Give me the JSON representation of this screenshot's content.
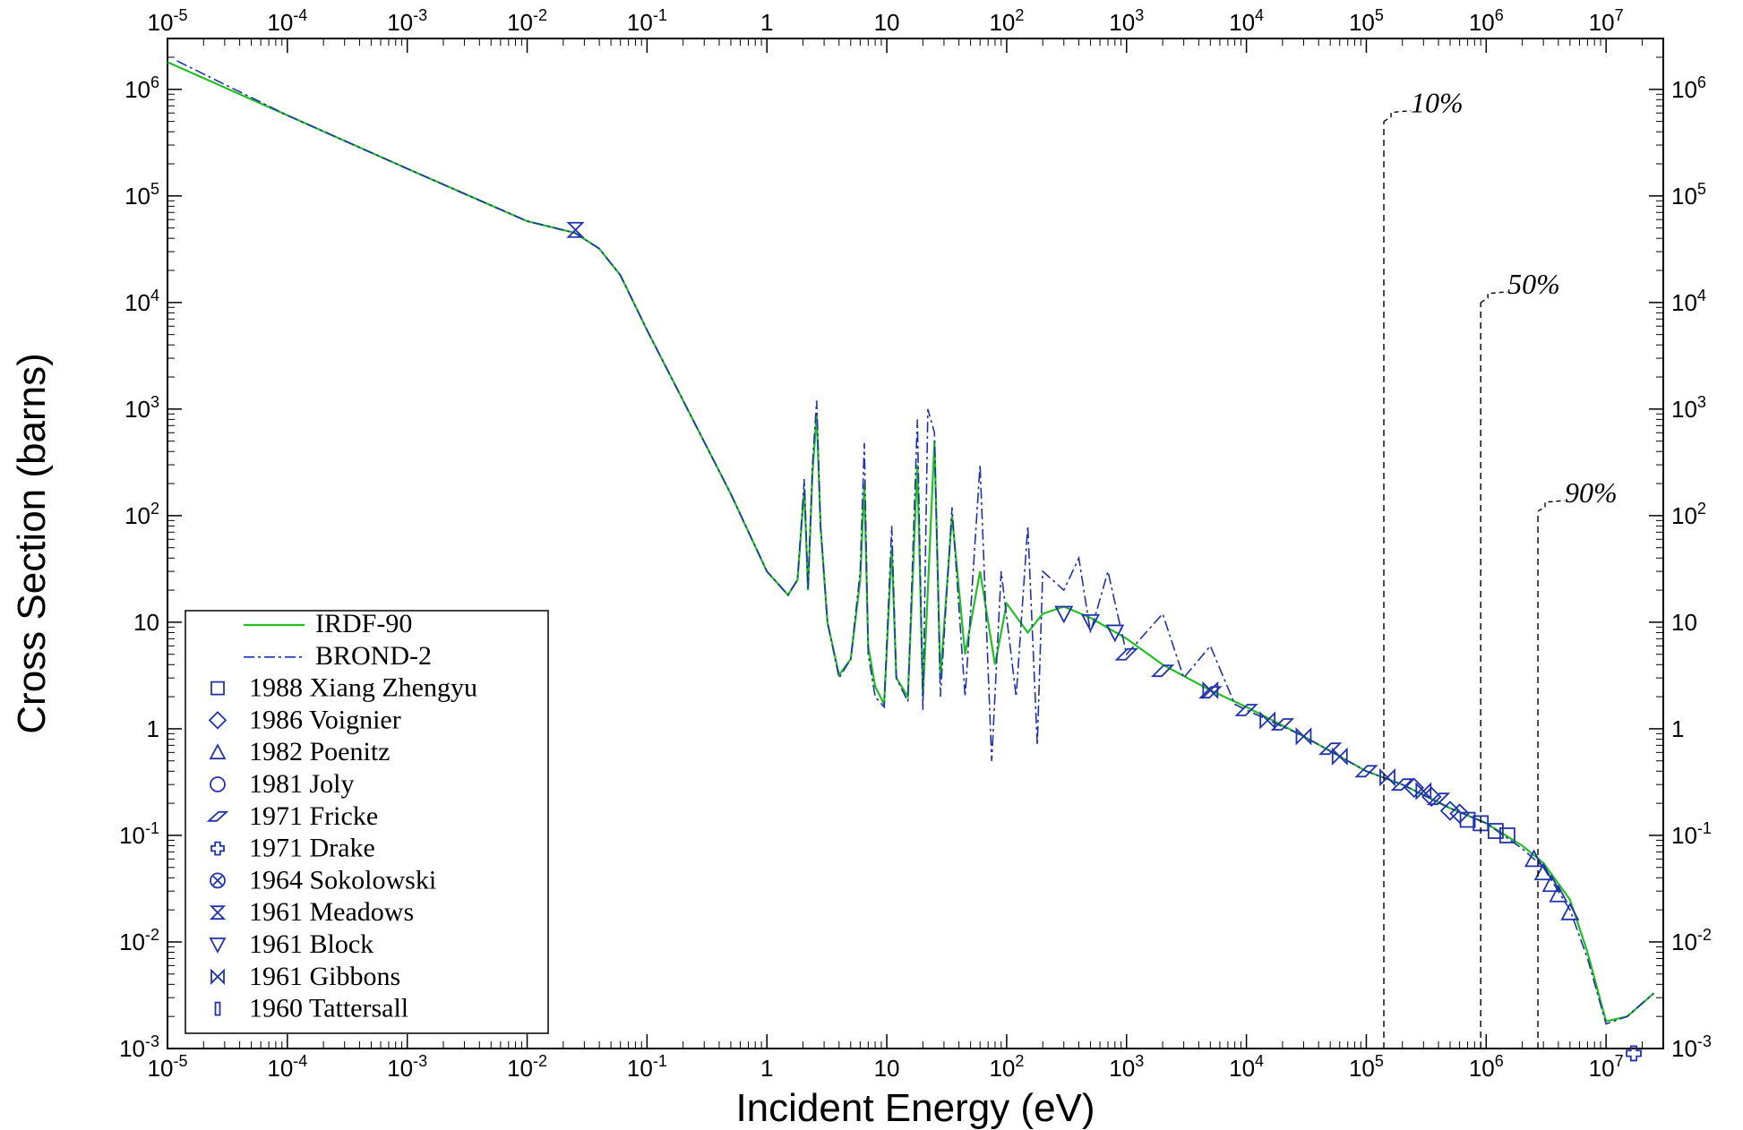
{
  "chart_data": {
    "type": "line",
    "x_scale": "log",
    "y_scale": "log",
    "xlim": [
      1e-05,
      30000000
    ],
    "ylim": [
      0.001,
      3000000
    ],
    "xlabel": "Incident Energy (eV)",
    "ylabel": "Cross Section (barns)",
    "x_ticks": [
      {
        "value": 1e-05,
        "base": "10",
        "exp": "-5"
      },
      {
        "value": 0.0001,
        "base": "10",
        "exp": "-4"
      },
      {
        "value": 0.001,
        "base": "10",
        "exp": "-3"
      },
      {
        "value": 0.01,
        "base": "10",
        "exp": "-2"
      },
      {
        "value": 0.1,
        "base": "10",
        "exp": "-1"
      },
      {
        "value": 1,
        "base": "1",
        "exp": ""
      },
      {
        "value": 10,
        "base": "10",
        "exp": ""
      },
      {
        "value": 100,
        "base": "10",
        "exp": "2"
      },
      {
        "value": 1000,
        "base": "10",
        "exp": "3"
      },
      {
        "value": 10000,
        "base": "10",
        "exp": "4"
      },
      {
        "value": 100000,
        "base": "10",
        "exp": "5"
      },
      {
        "value": 1000000,
        "base": "10",
        "exp": "6"
      },
      {
        "value": 10000000,
        "base": "10",
        "exp": "7"
      }
    ],
    "y_ticks": [
      {
        "value": 0.001,
        "base": "10",
        "exp": "-3"
      },
      {
        "value": 0.01,
        "base": "10",
        "exp": "-2"
      },
      {
        "value": 0.1,
        "base": "10",
        "exp": "-1"
      },
      {
        "value": 1,
        "base": "1",
        "exp": ""
      },
      {
        "value": 10,
        "base": "10",
        "exp": ""
      },
      {
        "value": 100,
        "base": "10",
        "exp": "2"
      },
      {
        "value": 1000,
        "base": "10",
        "exp": "3"
      },
      {
        "value": 10000,
        "base": "10",
        "exp": "4"
      },
      {
        "value": 100000,
        "base": "10",
        "exp": "5"
      },
      {
        "value": 1000000,
        "base": "10",
        "exp": "6"
      }
    ],
    "series": [
      {
        "name": "IRDF-90",
        "color": "#22c022",
        "style": "solid",
        "points": [
          [
            1e-05,
            1800000
          ],
          [
            0.0001,
            570000
          ],
          [
            0.001,
            180000
          ],
          [
            0.01,
            58000
          ],
          [
            0.025,
            45000
          ],
          [
            0.04,
            32000
          ],
          [
            0.06,
            18000
          ],
          [
            0.1,
            5500
          ],
          [
            0.2,
            1200
          ],
          [
            0.5,
            160
          ],
          [
            1,
            30
          ],
          [
            1.5,
            18
          ],
          [
            1.8,
            25
          ],
          [
            2.05,
            180
          ],
          [
            2.2,
            20
          ],
          [
            2.4,
            250
          ],
          [
            2.6,
            900
          ],
          [
            2.8,
            80
          ],
          [
            3.2,
            10
          ],
          [
            4,
            3.2
          ],
          [
            5,
            4.5
          ],
          [
            6,
            25
          ],
          [
            6.5,
            200
          ],
          [
            7,
            6
          ],
          [
            8,
            2.5
          ],
          [
            9.5,
            1.7
          ],
          [
            11,
            50
          ],
          [
            12,
            3
          ],
          [
            15,
            2
          ],
          [
            18,
            300
          ],
          [
            20,
            2
          ],
          [
            22,
            20
          ],
          [
            25,
            500
          ],
          [
            28,
            3
          ],
          [
            35,
            100
          ],
          [
            45,
            5
          ],
          [
            60,
            30
          ],
          [
            80,
            4
          ],
          [
            100,
            15
          ],
          [
            150,
            8
          ],
          [
            200,
            12
          ],
          [
            300,
            14
          ],
          [
            500,
            11
          ],
          [
            1000,
            7
          ],
          [
            2000,
            4
          ],
          [
            5000,
            2.3
          ],
          [
            10000,
            1.6
          ],
          [
            30000,
            0.85
          ],
          [
            60000,
            0.55
          ],
          [
            100000,
            0.4
          ],
          [
            200000,
            0.3
          ],
          [
            500000,
            0.18
          ],
          [
            1000000,
            0.13
          ],
          [
            2000000,
            0.08
          ],
          [
            3000000,
            0.055
          ],
          [
            5000000,
            0.025
          ],
          [
            7000000,
            0.008
          ],
          [
            10000000,
            0.0018
          ],
          [
            15000000,
            0.002
          ],
          [
            25000000,
            0.0033
          ]
        ]
      },
      {
        "name": "BROND-2",
        "color": "#2233aa",
        "style": "dashdot",
        "points": [
          [
            1.2e-05,
            1850000
          ],
          [
            0.0001,
            570000
          ],
          [
            0.001,
            180000
          ],
          [
            0.01,
            58000
          ],
          [
            0.025,
            45000
          ],
          [
            0.04,
            32000
          ],
          [
            0.06,
            18000
          ],
          [
            0.1,
            5500
          ],
          [
            0.2,
            1200
          ],
          [
            0.5,
            160
          ],
          [
            1,
            30
          ],
          [
            1.5,
            18
          ],
          [
            1.8,
            25
          ],
          [
            2.05,
            220
          ],
          [
            2.2,
            20
          ],
          [
            2.4,
            300
          ],
          [
            2.6,
            1200
          ],
          [
            2.8,
            80
          ],
          [
            3.2,
            10
          ],
          [
            4,
            3
          ],
          [
            5,
            4.5
          ],
          [
            6,
            30
          ],
          [
            6.5,
            480
          ],
          [
            7,
            5
          ],
          [
            8,
            2
          ],
          [
            9.5,
            1.6
          ],
          [
            11,
            80
          ],
          [
            12,
            3
          ],
          [
            15,
            1.8
          ],
          [
            18,
            800
          ],
          [
            20,
            1.5
          ],
          [
            22,
            1000
          ],
          [
            25,
            600
          ],
          [
            28,
            2
          ],
          [
            35,
            120
          ],
          [
            45,
            2
          ],
          [
            60,
            300
          ],
          [
            75,
            0.5
          ],
          [
            90,
            30
          ],
          [
            120,
            2
          ],
          [
            150,
            80
          ],
          [
            180,
            0.7
          ],
          [
            200,
            30
          ],
          [
            300,
            20
          ],
          [
            400,
            40
          ],
          [
            500,
            8
          ],
          [
            700,
            30
          ],
          [
            1000,
            5
          ],
          [
            2000,
            12
          ],
          [
            3000,
            3
          ],
          [
            5000,
            6
          ],
          [
            8000,
            1.7
          ],
          [
            10000,
            1.5
          ],
          [
            30000,
            0.85
          ],
          [
            60000,
            0.55
          ],
          [
            100000,
            0.4
          ],
          [
            200000,
            0.3
          ],
          [
            500000,
            0.18
          ],
          [
            1000000,
            0.13
          ],
          [
            2000000,
            0.075
          ],
          [
            3000000,
            0.05
          ],
          [
            5000000,
            0.02
          ],
          [
            7000000,
            0.007
          ],
          [
            10000000,
            0.0017
          ],
          [
            15000000,
            0.002
          ],
          [
            25000000,
            0.0033
          ]
        ]
      }
    ],
    "markers": [
      {
        "name": "1988 Xiang Zhengyu",
        "shape": "square",
        "points": [
          [
            700000,
            0.14
          ],
          [
            900000,
            0.13
          ],
          [
            1200000,
            0.11
          ],
          [
            1500000,
            0.1
          ]
        ]
      },
      {
        "name": "1986 Voignier",
        "shape": "diamond",
        "points": [
          [
            250000,
            0.28
          ],
          [
            350000,
            0.23
          ],
          [
            500000,
            0.17
          ],
          [
            600000,
            0.16
          ]
        ]
      },
      {
        "name": "1982 Poenitz",
        "shape": "triangle-up",
        "points": [
          [
            2500000,
            0.06
          ],
          [
            3000000,
            0.045
          ],
          [
            3500000,
            0.035
          ],
          [
            4000000,
            0.028
          ],
          [
            5000000,
            0.019
          ]
        ]
      },
      {
        "name": "1981 Joly",
        "shape": "circle",
        "points": []
      },
      {
        "name": "1971 Fricke",
        "shape": "parallelogram",
        "points": [
          [
            1000,
            5
          ],
          [
            2000,
            3.5
          ],
          [
            5000,
            2.2
          ],
          [
            10000,
            1.5
          ],
          [
            20000,
            1.1
          ],
          [
            50000,
            0.65
          ],
          [
            100000,
            0.4
          ],
          [
            200000,
            0.3
          ],
          [
            400000,
            0.22
          ]
        ]
      },
      {
        "name": "1971 Drake",
        "shape": "plus",
        "points": [
          [
            17000000,
            0.0009
          ]
        ]
      },
      {
        "name": "1964 Sokolowski",
        "shape": "x-circle",
        "points": []
      },
      {
        "name": "1961 Meadows",
        "shape": "hourglass",
        "points": [
          [
            0.0253,
            48000
          ]
        ]
      },
      {
        "name": "1961 Block",
        "shape": "triangle-down",
        "points": [
          [
            300,
            12
          ],
          [
            500,
            10
          ],
          [
            800,
            8
          ]
        ]
      },
      {
        "name": "1961 Gibbons",
        "shape": "bowtie",
        "points": [
          [
            5000,
            2.3
          ],
          [
            15000,
            1.2
          ],
          [
            30000,
            0.85
          ],
          [
            60000,
            0.55
          ],
          [
            150000,
            0.35
          ],
          [
            300000,
            0.26
          ]
        ]
      },
      {
        "name": "1960 Tattersall",
        "shape": "bar",
        "points": []
      }
    ],
    "vlines": [
      {
        "label": "10%",
        "x": 140000,
        "y_top": 500000
      },
      {
        "label": "50%",
        "x": 900000,
        "y_top": 10000
      },
      {
        "label": "90%",
        "x": 2700000,
        "y_top": 110
      }
    ],
    "legend": {
      "position": "bottom-left"
    }
  }
}
